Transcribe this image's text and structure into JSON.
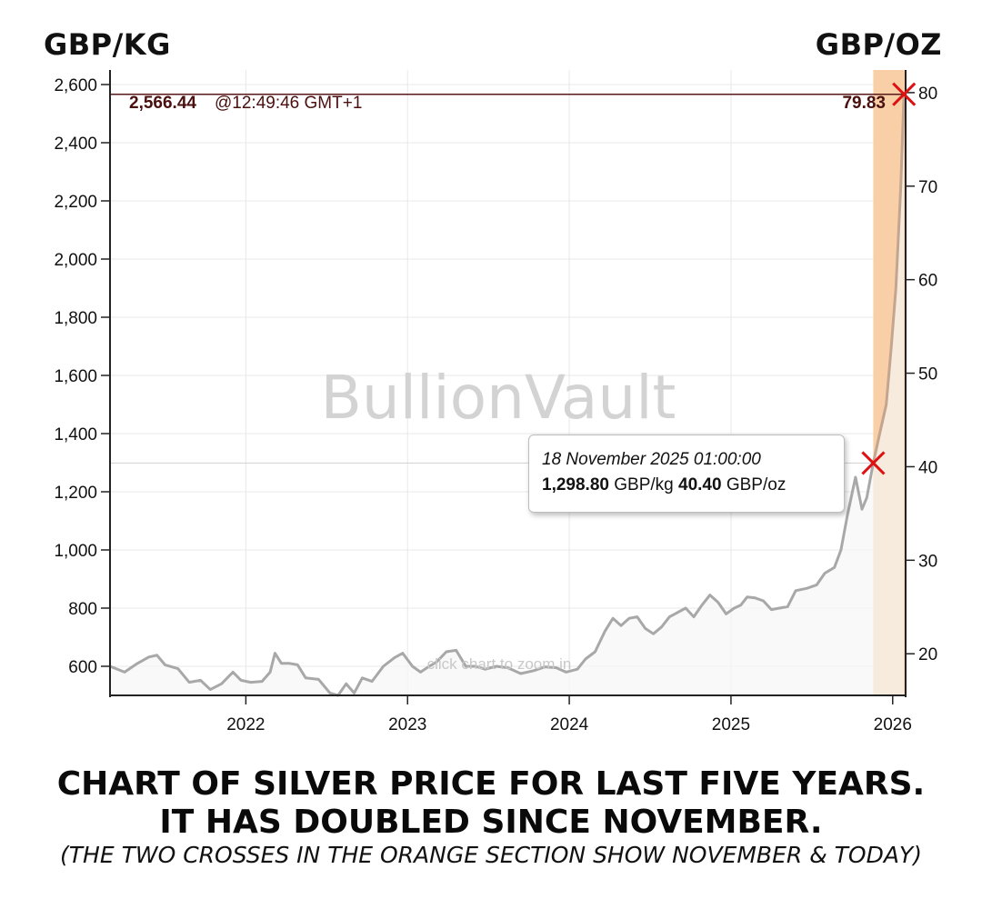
{
  "header": {
    "left_unit": "GBP/KG",
    "right_unit": "GBP/OZ"
  },
  "current_price": {
    "kg_value": "2,566.44",
    "time": "@12:49:46 GMT+1",
    "oz_value": "79.83"
  },
  "tooltip": {
    "date": "18 November 2025 01:00:00",
    "kg_value": "1,298.80",
    "kg_unit": "GBP/kg",
    "oz_value": "40.40",
    "oz_unit": "GBP/oz"
  },
  "watermark": "BullionVault",
  "zoom_hint": "click chart to zoom in",
  "caption": {
    "line1": "CHART OF SILVER PRICE FOR LAST FIVE YEARS.",
    "line2": "IT HAS DOUBLED SINCE NOVEMBER.",
    "line3": "(THE TWO CROSSES IN THE ORANGE SECTION SHOW NOVEMBER & TODAY)"
  },
  "colors": {
    "line": "#a8a8a8",
    "line_highlight": "#c4a590",
    "highlight_band": "#f8cfa6",
    "marker": "#dd1111",
    "current_line": "#5a1a1a",
    "grid": "#e8e8e8"
  },
  "chart_data": {
    "type": "line",
    "title": "",
    "xlabel": "",
    "ylabel": "GBP/KG",
    "ylabel_right": "GBP/OZ",
    "x_ticks": [
      "2022",
      "2023",
      "2024",
      "2025",
      "2026"
    ],
    "y_ticks_left": [
      "600",
      "800",
      "1,000",
      "1,200",
      "1,400",
      "1,600",
      "1,800",
      "2,000",
      "2,200",
      "2,400",
      "2,600"
    ],
    "y_ticks_right": [
      "20",
      "30",
      "40",
      "50",
      "60",
      "70",
      "80"
    ],
    "ylim_left": [
      500,
      2650
    ],
    "ylim_right": [
      15.55,
      82.42
    ],
    "xlim": [
      2021.16,
      2026.08
    ],
    "grid": true,
    "highlight_range": [
      2025.88,
      2026.08
    ],
    "series": [
      {
        "values": [
          [
            2021.16,
            600
          ],
          [
            2021.25,
            580
          ],
          [
            2021.33,
            610
          ],
          [
            2021.4,
            632
          ],
          [
            2021.45,
            638
          ],
          [
            2021.5,
            605
          ],
          [
            2021.58,
            592
          ],
          [
            2021.65,
            545
          ],
          [
            2021.72,
            552
          ],
          [
            2021.78,
            520
          ],
          [
            2021.85,
            540
          ],
          [
            2021.92,
            580
          ],
          [
            2021.97,
            552
          ],
          [
            2022.03,
            545
          ],
          [
            2022.1,
            548
          ],
          [
            2022.15,
            580
          ],
          [
            2022.18,
            645
          ],
          [
            2022.22,
            610
          ],
          [
            2022.27,
            610
          ],
          [
            2022.32,
            605
          ],
          [
            2022.37,
            560
          ],
          [
            2022.45,
            555
          ],
          [
            2022.52,
            508
          ],
          [
            2022.57,
            500
          ],
          [
            2022.62,
            540
          ],
          [
            2022.67,
            508
          ],
          [
            2022.72,
            560
          ],
          [
            2022.78,
            548
          ],
          [
            2022.85,
            600
          ],
          [
            2022.92,
            630
          ],
          [
            2022.97,
            645
          ],
          [
            2023.03,
            600
          ],
          [
            2023.08,
            580
          ],
          [
            2023.12,
            595
          ],
          [
            2023.18,
            615
          ],
          [
            2023.24,
            650
          ],
          [
            2023.3,
            655
          ],
          [
            2023.36,
            600
          ],
          [
            2023.42,
            600
          ],
          [
            2023.48,
            590
          ],
          [
            2023.55,
            600
          ],
          [
            2023.62,
            595
          ],
          [
            2023.7,
            575
          ],
          [
            2023.78,
            585
          ],
          [
            2023.85,
            598
          ],
          [
            2023.92,
            595
          ],
          [
            2023.98,
            580
          ],
          [
            2024.05,
            590
          ],
          [
            2024.1,
            625
          ],
          [
            2024.16,
            650
          ],
          [
            2024.22,
            720
          ],
          [
            2024.27,
            765
          ],
          [
            2024.32,
            740
          ],
          [
            2024.37,
            765
          ],
          [
            2024.42,
            770
          ],
          [
            2024.47,
            730
          ],
          [
            2024.52,
            712
          ],
          [
            2024.57,
            735
          ],
          [
            2024.62,
            770
          ],
          [
            2024.67,
            785
          ],
          [
            2024.72,
            800
          ],
          [
            2024.77,
            770
          ],
          [
            2024.82,
            810
          ],
          [
            2024.87,
            845
          ],
          [
            2024.92,
            820
          ],
          [
            2024.97,
            780
          ],
          [
            2025.02,
            800
          ],
          [
            2025.06,
            810
          ],
          [
            2025.1,
            838
          ],
          [
            2025.15,
            835
          ],
          [
            2025.2,
            825
          ],
          [
            2025.25,
            795
          ],
          [
            2025.3,
            800
          ],
          [
            2025.35,
            805
          ],
          [
            2025.4,
            860
          ],
          [
            2025.47,
            868
          ],
          [
            2025.53,
            880
          ],
          [
            2025.58,
            920
          ],
          [
            2025.64,
            940
          ],
          [
            2025.68,
            1000
          ],
          [
            2025.72,
            1120
          ],
          [
            2025.77,
            1250
          ],
          [
            2025.81,
            1140
          ],
          [
            2025.84,
            1180
          ],
          [
            2025.88,
            1298.8
          ],
          [
            2025.92,
            1400
          ],
          [
            2025.96,
            1500
          ],
          [
            2025.99,
            1690
          ],
          [
            2026.02,
            1900
          ],
          [
            2026.05,
            2250
          ],
          [
            2026.07,
            2566.44
          ]
        ]
      }
    ],
    "markers": [
      {
        "x": 2025.88,
        "y": 1298.8
      },
      {
        "x": 2026.07,
        "y": 2566.44
      }
    ]
  }
}
